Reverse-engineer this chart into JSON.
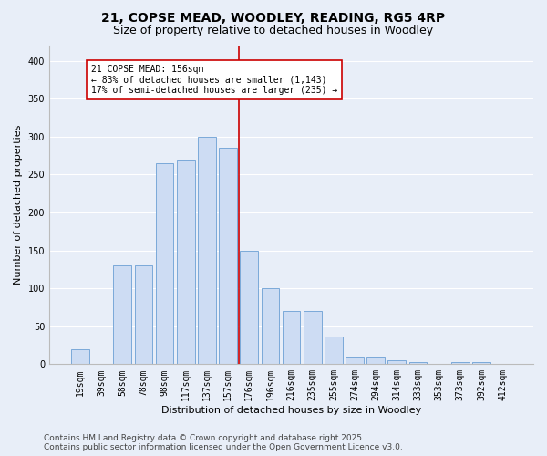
{
  "title": "21, COPSE MEAD, WOODLEY, READING, RG5 4RP",
  "subtitle": "Size of property relative to detached houses in Woodley",
  "xlabel": "Distribution of detached houses by size in Woodley",
  "ylabel": "Number of detached properties",
  "bar_labels": [
    "19sqm",
    "39sqm",
    "58sqm",
    "78sqm",
    "98sqm",
    "117sqm",
    "137sqm",
    "157sqm",
    "176sqm",
    "196sqm",
    "216sqm",
    "235sqm",
    "255sqm",
    "274sqm",
    "294sqm",
    "314sqm",
    "333sqm",
    "353sqm",
    "373sqm",
    "392sqm",
    "412sqm"
  ],
  "bar_heights": [
    20,
    0,
    130,
    130,
    265,
    270,
    300,
    285,
    150,
    100,
    70,
    70,
    37,
    10,
    10,
    5,
    3,
    0,
    3,
    3,
    0
  ],
  "bar_color": "#cddcf3",
  "bar_edge_color": "#6b9fd4",
  "vline_position": 7.5,
  "vline_color": "#cc0000",
  "annotation_text": "21 COPSE MEAD: 156sqm\n← 83% of detached houses are smaller (1,143)\n17% of semi-detached houses are larger (235) →",
  "annotation_box_color": "#ffffff",
  "annotation_box_edge": "#cc0000",
  "ylim": [
    0,
    420
  ],
  "yticks": [
    0,
    50,
    100,
    150,
    200,
    250,
    300,
    350,
    400
  ],
  "footer_line1": "Contains HM Land Registry data © Crown copyright and database right 2025.",
  "footer_line2": "Contains public sector information licensed under the Open Government Licence v3.0.",
  "bg_color": "#e8eef8",
  "plot_bg_color": "#e8eef8",
  "grid_color": "#ffffff",
  "title_fontsize": 10,
  "subtitle_fontsize": 9,
  "axis_label_fontsize": 8,
  "tick_fontsize": 7,
  "annotation_fontsize": 7,
  "footer_fontsize": 6.5
}
